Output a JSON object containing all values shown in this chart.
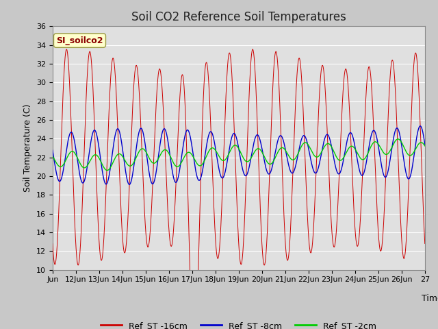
{
  "title": "Soil CO2 Reference Soil Temperatures",
  "ylabel": "Soil Temperature (C)",
  "xlabel": "Time",
  "ylim": [
    10,
    36
  ],
  "yticks": [
    10,
    12,
    14,
    16,
    18,
    20,
    22,
    24,
    26,
    28,
    30,
    32,
    34,
    36
  ],
  "xtick_labels": [
    "Jun",
    "12Jun",
    "13Jun",
    "14Jun",
    "15Jun",
    "16Jun",
    "17Jun",
    "18Jun",
    "19Jun",
    "20Jun",
    "21Jun",
    "22Jun",
    "23Jun",
    "24Jun",
    "25Jun",
    "26Jun",
    "27"
  ],
  "legend_labels": [
    "Ref_ST -16cm",
    "Ref_ST -8cm",
    "Ref_ST -2cm"
  ],
  "line_colors": [
    "#cc0000",
    "#0000cc",
    "#00cc00"
  ],
  "annotation_text": "SI_soilco2",
  "annotation_color": "#8B0000",
  "annotation_bg": "#ffffcc",
  "fig_bg": "#c8c8c8",
  "plot_bg": "#e0e0e0",
  "grid_color": "#ffffff",
  "title_fontsize": 12,
  "label_fontsize": 9,
  "tick_fontsize": 8
}
